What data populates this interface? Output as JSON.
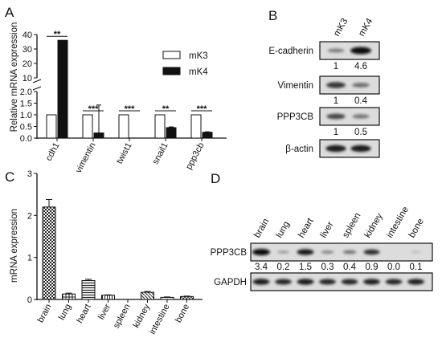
{
  "panel_letters": {
    "a": "A",
    "b": "B",
    "c": "C",
    "d": "D"
  },
  "chart_data": [
    {
      "type": "bar",
      "panel": "A",
      "ylabel": "Relative mRNA expression",
      "categories": [
        "cdh1",
        "vimentin",
        "twist1",
        "snail1",
        "ppp3cb"
      ],
      "series": [
        {
          "name": "mK3",
          "values": [
            1,
            1,
            1,
            1,
            1
          ],
          "color": "#ffffff"
        },
        {
          "name": "mK4",
          "values": [
            36,
            0.22,
            0,
            0.45,
            0.25
          ],
          "color": "#111111"
        }
      ],
      "error": [
        0,
        1.2,
        0,
        0.03,
        0.02
      ],
      "significance": [
        "**",
        "***",
        "***",
        "**",
        "***"
      ],
      "axis_break": {
        "lower": [
          0,
          2.0
        ],
        "upper": [
          10,
          40
        ]
      },
      "lower_ticks": [
        "0.0",
        "0.5",
        "1.0",
        "1.5",
        "2.0"
      ],
      "upper_ticks": [
        "10",
        "20",
        "30",
        "40"
      ],
      "legend_placement": "right"
    },
    {
      "type": "bar",
      "panel": "C",
      "ylabel": "mRNA expression",
      "categories": [
        "brain",
        "lung",
        "heart",
        "liver",
        "spleen",
        "kidney",
        "intestine",
        "bone"
      ],
      "values": [
        2.2,
        0.13,
        0.45,
        0.1,
        0.0,
        0.17,
        0.05,
        0.07
      ],
      "errors": [
        0.18,
        0.02,
        0.03,
        0.01,
        0.0,
        0.02,
        0.01,
        0.01
      ],
      "ylim": [
        0,
        3
      ],
      "ticks": [
        "0",
        "1",
        "2",
        "3"
      ]
    }
  ],
  "blot_b": {
    "lanes": [
      "mK3",
      "mK4"
    ],
    "rows": [
      {
        "label": "E-cadherin",
        "values": [
          "1",
          "4.6"
        ],
        "intensity": [
          0.35,
          1.0
        ]
      },
      {
        "label": "Vimentin",
        "values": [
          "1",
          "0.4"
        ],
        "intensity": [
          0.75,
          0.45
        ]
      },
      {
        "label": "PPP3CB",
        "values": [
          "1",
          "0.5"
        ],
        "intensity": [
          0.65,
          0.4
        ]
      },
      {
        "label": "β-actin",
        "values": [],
        "intensity": [
          0.9,
          0.9
        ]
      }
    ]
  },
  "blot_d": {
    "lanes": [
      "brain",
      "lung",
      "heart",
      "liver",
      "spleen",
      "kidney",
      "intestine",
      "bone"
    ],
    "rows": [
      {
        "label": "PPP3CB",
        "values": [
          "3.4",
          "0.2",
          "1.5",
          "0.3",
          "0.4",
          "0.9",
          "0.0",
          "0.1"
        ],
        "intensity": [
          1.0,
          0.25,
          0.9,
          0.35,
          0.45,
          0.8,
          0.0,
          0.1
        ]
      },
      {
        "label": "GAPDH",
        "values": [],
        "intensity": [
          0.9,
          0.85,
          0.9,
          0.85,
          0.85,
          0.88,
          0.85,
          0.88
        ]
      }
    ]
  }
}
